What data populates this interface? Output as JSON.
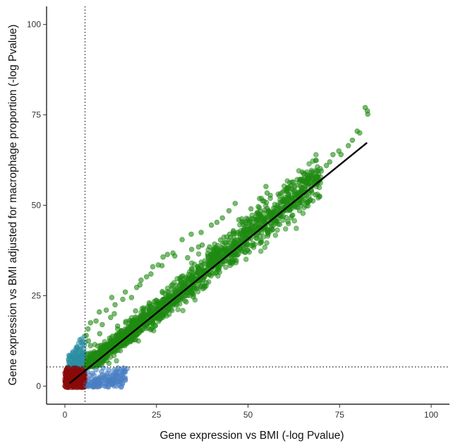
{
  "chart_data": {
    "type": "scatter",
    "title": "",
    "xlabel": "Gene expression vs BMI (-log Pvalue)",
    "ylabel": "Gene expression vs BMI adjusted for macrophage proportion (-log Pvalue)",
    "xlim": [
      -5,
      105
    ],
    "ylim": [
      -5,
      105
    ],
    "x_ticks": [
      0,
      25,
      50,
      75,
      100
    ],
    "y_ticks": [
      0,
      25,
      50,
      75,
      100
    ],
    "x_tick_labels": [
      "0",
      "25",
      "50",
      "75",
      "100"
    ],
    "y_tick_labels": [
      "0",
      "25",
      "50",
      "75",
      "100"
    ],
    "grid": false,
    "legend": "none",
    "thresholds": {
      "x": 5.5,
      "y": 5.3
    },
    "fit_line": {
      "x": [
        1.3,
        82.5
      ],
      "y": [
        0.8,
        67.3
      ]
    },
    "series": [
      {
        "group": "both-significant",
        "color": "#1f8a12",
        "points": [
          [
            82,
            77
          ],
          [
            82.7,
            75.2
          ],
          [
            82.6,
            76.1
          ],
          [
            80.5,
            70
          ],
          [
            79.8,
            70.5
          ],
          [
            78.5,
            68
          ],
          [
            77.4,
            66.5
          ],
          [
            75.4,
            64
          ],
          [
            74.8,
            65
          ],
          [
            73.2,
            64
          ],
          [
            72.3,
            62
          ],
          [
            70,
            59.5
          ],
          [
            68.6,
            58
          ],
          [
            67.5,
            57.5
          ],
          [
            66,
            56
          ],
          [
            64.5,
            55
          ],
          [
            65.4,
            57.5
          ],
          [
            63.5,
            53.3
          ],
          [
            63.2,
            52.7
          ],
          [
            61.2,
            51.8
          ],
          [
            60.5,
            49.3
          ],
          [
            59,
            48.8
          ],
          [
            57,
            49.2
          ],
          [
            54.9,
            55.2
          ],
          [
            56.2,
            47.5
          ],
          [
            57.5,
            47.9
          ],
          [
            53.5,
            47
          ],
          [
            52.4,
            45.6
          ],
          [
            51.1,
            44.4
          ],
          [
            50.8,
            49
          ],
          [
            47.5,
            46
          ],
          [
            45,
            42
          ],
          [
            44.8,
            48.5
          ],
          [
            42.5,
            40.4
          ],
          [
            41.5,
            45.3
          ],
          [
            39.5,
            38.5
          ],
          [
            37.5,
            39
          ],
          [
            36.5,
            38.5
          ],
          [
            34.6,
            37.8
          ],
          [
            33.5,
            35.5
          ],
          [
            30,
            36
          ],
          [
            28,
            36.4
          ],
          [
            26.5,
            33.3
          ],
          [
            25.5,
            33.5
          ],
          [
            24,
            33
          ],
          [
            22.3,
            30.2
          ],
          [
            20.5,
            28
          ],
          [
            19.6,
            27.3
          ],
          [
            20.8,
            29.3
          ],
          [
            16.5,
            26
          ],
          [
            13.5,
            20
          ],
          [
            12.5,
            19
          ],
          [
            11.3,
            21
          ],
          [
            9.4,
            20.5
          ],
          [
            8.5,
            18
          ],
          [
            7,
            17.5
          ],
          [
            6.3,
            15.8
          ],
          [
            5.8,
            14
          ],
          [
            6.4,
            12.5
          ],
          [
            7,
            11.2
          ],
          [
            18.2,
            24.5
          ],
          [
            23.5,
            31
          ],
          [
            34.5,
            42
          ],
          [
            40,
            44.5
          ],
          [
            37.2,
            42.5
          ],
          [
            43,
            46.5
          ],
          [
            46.5,
            50.5
          ],
          [
            52.8,
            49.6
          ],
          [
            55.2,
            53.4
          ],
          [
            58,
            50
          ],
          [
            61.8,
            55.5
          ],
          [
            62.5,
            51.2
          ],
          [
            69.2,
            56.5
          ],
          [
            71.4,
            61
          ],
          [
            66.2,
            58.2
          ],
          [
            32,
            40.5
          ],
          [
            29.5,
            36.8
          ],
          [
            26.8,
            35.7
          ],
          [
            15.8,
            24
          ],
          [
            13.7,
            22.5
          ],
          [
            10.2,
            17
          ],
          [
            12.8,
            24.5
          ],
          [
            9.5,
            14.5
          ],
          [
            14.4,
            16.6
          ],
          [
            19.3,
            20.8
          ],
          [
            16.6,
            17.5
          ],
          [
            21.5,
            21.6
          ],
          [
            44.5,
            37.5
          ],
          [
            48.7,
            39.7
          ]
        ]
      },
      {
        "group": "significant-adjusted-only",
        "color": "#2c8ea2",
        "points": [
          [
            3,
            6
          ],
          [
            3.5,
            8
          ],
          [
            4,
            10
          ],
          [
            4.5,
            12
          ],
          [
            4.8,
            11.5
          ],
          [
            3.8,
            7.5
          ],
          [
            4.6,
            9.2
          ],
          [
            2,
            6.5
          ],
          [
            3.4,
            10.8
          ],
          [
            5,
            6.8
          ],
          [
            2.6,
            7.4
          ],
          [
            4.3,
            8.3
          ],
          [
            1.8,
            5.8
          ],
          [
            5.3,
            8.6
          ],
          [
            4.9,
            7.2
          ],
          [
            3.1,
            9.1
          ],
          [
            2.3,
            6.1
          ],
          [
            4.1,
            12.8
          ],
          [
            5.2,
            10.3
          ],
          [
            2.9,
            5.9
          ],
          [
            3.7,
            6.3
          ],
          [
            4.4,
            6.9
          ]
        ]
      },
      {
        "group": "significant-unadjusted-only",
        "color": "#4a7fc3",
        "points": [
          [
            6,
            0
          ],
          [
            7,
            0.5
          ],
          [
            8,
            1
          ],
          [
            9,
            1
          ],
          [
            10,
            1.5
          ],
          [
            11,
            2
          ],
          [
            12,
            2.5
          ],
          [
            13,
            3
          ],
          [
            14,
            3.5
          ],
          [
            15,
            4
          ],
          [
            7,
            2
          ],
          [
            8,
            3
          ],
          [
            10,
            4
          ],
          [
            12,
            4.5
          ],
          [
            6.5,
            1.5
          ],
          [
            9.5,
            2.5
          ],
          [
            11.5,
            3.5
          ],
          [
            13.5,
            4.5
          ],
          [
            16,
            5
          ],
          [
            7.5,
            3.5
          ],
          [
            8.5,
            4.5
          ],
          [
            6.2,
            4
          ],
          [
            10.5,
            5
          ],
          [
            14.5,
            5
          ],
          [
            12.5,
            1.2
          ],
          [
            9,
            -0.2
          ],
          [
            11,
            0.6
          ],
          [
            7.8,
            0.2
          ],
          [
            15.5,
            3.2
          ],
          [
            17,
            4.8
          ],
          [
            10.2,
            3.1
          ],
          [
            8.2,
            1.8
          ],
          [
            6.8,
            3
          ],
          [
            13,
            1.9
          ]
        ]
      },
      {
        "group": "not-significant",
        "color": "#8b0a0a",
        "points": [
          [
            0,
            0
          ],
          [
            0.5,
            1
          ],
          [
            1,
            2
          ],
          [
            1.5,
            3
          ],
          [
            2,
            4
          ],
          [
            2.5,
            4.5
          ],
          [
            3,
            5
          ],
          [
            3.5,
            4.8
          ],
          [
            4,
            4
          ],
          [
            4.5,
            3
          ],
          [
            5,
            2
          ],
          [
            5.3,
            1
          ],
          [
            1,
            0
          ],
          [
            2,
            0.5
          ],
          [
            3,
            1
          ],
          [
            4,
            0.5
          ],
          [
            5,
            0
          ],
          [
            0.2,
            3
          ],
          [
            0.5,
            4.5
          ],
          [
            1,
            5
          ],
          [
            0,
            2
          ],
          [
            0.3,
            -0.3
          ],
          [
            2.2,
            2.2
          ],
          [
            3.2,
            2.8
          ],
          [
            4.2,
            1.8
          ],
          [
            1.7,
            1.2
          ],
          [
            2.7,
            3.5
          ],
          [
            4.7,
            4.6
          ],
          [
            0.8,
            3.8
          ],
          [
            1.3,
            4.2
          ],
          [
            3.8,
            0.2
          ],
          [
            5.1,
            3.7
          ],
          [
            2.4,
            5
          ],
          [
            1.9,
            3.1
          ],
          [
            4.4,
            2.4
          ],
          [
            0.6,
            0.4
          ],
          [
            3.4,
            3.9
          ],
          [
            2.9,
            0.1
          ],
          [
            1.2,
            2.6
          ],
          [
            0.1,
            1.2
          ]
        ]
      }
    ]
  }
}
